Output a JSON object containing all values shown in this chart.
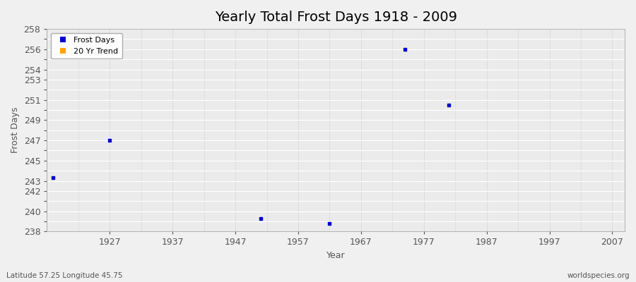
{
  "title": "Yearly Total Frost Days 1918 - 2009",
  "xlabel": "Year",
  "ylabel": "Frost Days",
  "subtitle_left": "Latitude 57.25 Longitude 45.75",
  "subtitle_right": "worldspecies.org",
  "x_data": [
    1918,
    1927,
    1951,
    1962,
    1974,
    1981
  ],
  "y_data": [
    243.3,
    247.0,
    239.3,
    238.8,
    256.0,
    250.5
  ],
  "point_color": "#0000cc",
  "point_marker": "s",
  "point_size": 6,
  "ylim": [
    238,
    258
  ],
  "xlim": [
    1917,
    2009
  ],
  "xticks": [
    1927,
    1937,
    1947,
    1957,
    1967,
    1977,
    1987,
    1997,
    2007
  ],
  "yticks_all": [
    238,
    239,
    240,
    241,
    242,
    243,
    244,
    245,
    246,
    247,
    248,
    249,
    250,
    251,
    252,
    253,
    254,
    255,
    256,
    257,
    258
  ],
  "yticks_labeled": [
    238,
    240,
    242,
    243,
    245,
    247,
    249,
    251,
    253,
    254,
    256,
    258
  ],
  "legend_labels": [
    "Frost Days",
    "20 Yr Trend"
  ],
  "legend_colors": [
    "#0000cc",
    "#ffa500"
  ],
  "background_color": "#f0f0f0",
  "plot_bg_color": "#ebebeb",
  "grid_color": "#ffffff",
  "grid_dash_color": "#cccccc",
  "title_fontsize": 14,
  "axis_fontsize": 9,
  "tick_fontsize": 9
}
